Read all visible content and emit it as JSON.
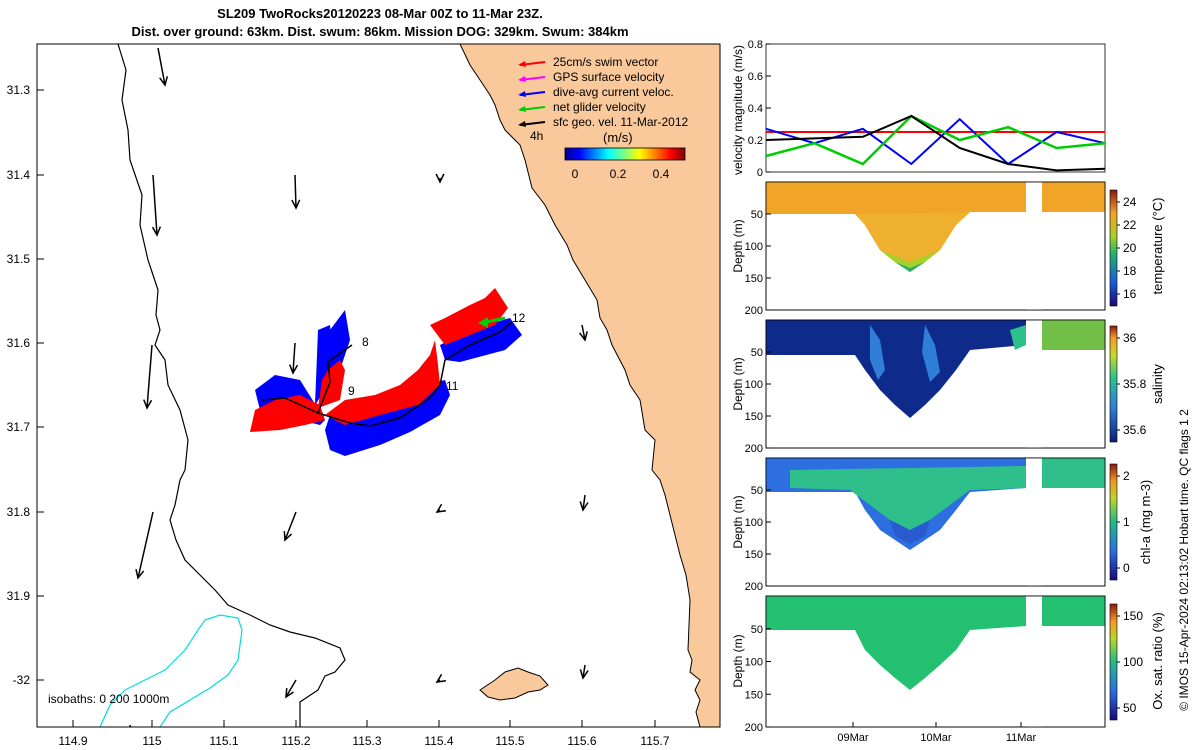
{
  "header": {
    "title_line1": "SL209 TwoRocks20120223 08-Mar 00Z to 11-Mar 23Z.",
    "title_line2": "Dist. over ground: 63km. Dist. swum: 86km. Mission DOG: 329km. Swum: 384km"
  },
  "map": {
    "legend": [
      {
        "label": "25cm/s swim vector",
        "color": "#ff0000"
      },
      {
        "label": "GPS surface velocity",
        "color": "#ff00ff"
      },
      {
        "label": "dive-avg current veloc.",
        "color": "#0000ff"
      },
      {
        "label": "net glider velocity",
        "color": "#00cc00"
      },
      {
        "label": "sfc geo. vel. 11-Mar-2012",
        "color": "#000000"
      }
    ],
    "scale_arrow_label": "4h",
    "colorbar_unit": "(m/s)",
    "colorbar_ticks": [
      "0",
      "0.2",
      "0.4"
    ],
    "x_ticks": [
      "114.9",
      "115",
      "115.1",
      "115.2",
      "115.3",
      "115.4",
      "115.5",
      "115.6",
      "115.7"
    ],
    "y_ticks": [
      "31.3",
      "31.4",
      "31.5",
      "31.6",
      "31.7",
      "31.8",
      "31.9",
      "-32"
    ],
    "day_labels": [
      "8",
      "9",
      "11",
      "12"
    ],
    "isobaths_label": "isobaths: 0   200  1000m",
    "land_color": "#f9c89b"
  },
  "chart_data": [
    {
      "type": "line",
      "ylabel": "velocity magnitude (m/s)",
      "ylim": [
        0,
        0.8
      ],
      "yticks": [
        "0",
        "0.2",
        "0.4",
        "0.6",
        "0.8"
      ],
      "series": [
        {
          "color": "#ff0000",
          "values": [
            0.25,
            0.25,
            0.25,
            0.25,
            0.25,
            0.25,
            0.25,
            0.25
          ]
        },
        {
          "color": "#0000ff",
          "values": [
            0.27,
            0.18,
            0.27,
            0.05,
            0.33,
            0.05,
            0.25,
            0.18
          ]
        },
        {
          "color": "#00cc00",
          "values": [
            0.1,
            0.18,
            0.05,
            0.35,
            0.2,
            0.28,
            0.15,
            0.18
          ]
        },
        {
          "color": "#000000",
          "values": [
            0.2,
            0.21,
            0.22,
            0.35,
            0.15,
            0.05,
            0.01,
            0.02
          ]
        }
      ]
    },
    {
      "type": "heatmap",
      "ylabel": "Depth (m)",
      "clabel": "temperature (°C)",
      "cticks": [
        "24",
        "22",
        "20",
        "18",
        "16"
      ],
      "yticks": [
        "50",
        "100",
        "150",
        "200"
      ]
    },
    {
      "type": "heatmap",
      "ylabel": "Depth (m)",
      "clabel": "salinity",
      "cticks": [
        "36",
        "35.8",
        "35.6"
      ],
      "yticks": [
        "50",
        "100",
        "150",
        "200"
      ]
    },
    {
      "type": "heatmap",
      "ylabel": "Depth (m)",
      "clabel": "chl-a (mg m-3)",
      "cticks": [
        "2",
        "1",
        "0"
      ],
      "yticks": [
        "50",
        "100",
        "150",
        "200"
      ]
    },
    {
      "type": "heatmap",
      "ylabel": "Depth (m)",
      "clabel": "Ox. sat. ratio (%)",
      "cticks": [
        "150",
        "100",
        "50"
      ],
      "yticks": [
        "50",
        "100",
        "150",
        "200"
      ],
      "xticks": [
        "09Mar",
        "10Mar",
        "11Mar"
      ]
    }
  ],
  "side_label": "© IMOS 15-Apr-2024 02:13:02 Hobart time. QC flags 1  2"
}
